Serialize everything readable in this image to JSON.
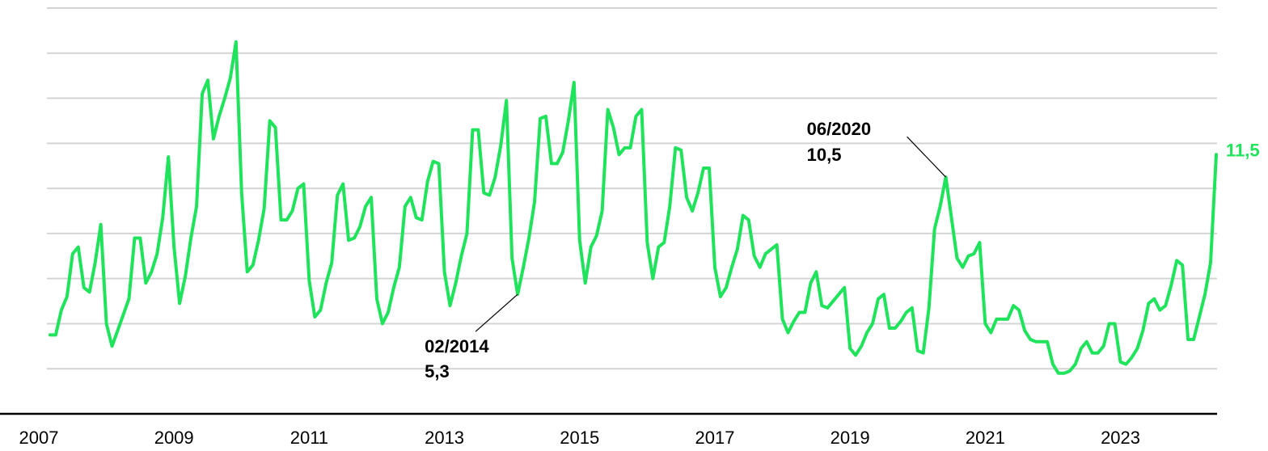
{
  "chart_data": {
    "type": "line",
    "color": "#1fe35b",
    "grid": true,
    "xlim": [
      2007,
      2024.417
    ],
    "xticks": [
      2007,
      2009,
      2011,
      2013,
      2015,
      2017,
      2019,
      2021,
      2023
    ],
    "ylim": [
      0,
      18
    ],
    "yticks": [
      0,
      2,
      4,
      6,
      8,
      10,
      12,
      14,
      16,
      18
    ],
    "x": [
      2007.167,
      2007.25,
      2007.333,
      2007.417,
      2007.5,
      2007.583,
      2007.667,
      2007.75,
      2007.833,
      2007.917,
      2008,
      2008.083,
      2008.167,
      2008.25,
      2008.333,
      2008.417,
      2008.5,
      2008.583,
      2008.667,
      2008.75,
      2008.833,
      2008.917,
      2009,
      2009.083,
      2009.167,
      2009.25,
      2009.333,
      2009.417,
      2009.5,
      2009.583,
      2009.667,
      2009.75,
      2009.833,
      2009.917,
      2010,
      2010.083,
      2010.167,
      2010.25,
      2010.333,
      2010.417,
      2010.5,
      2010.583,
      2010.667,
      2010.75,
      2010.833,
      2010.917,
      2011,
      2011.083,
      2011.167,
      2011.25,
      2011.333,
      2011.417,
      2011.5,
      2011.583,
      2011.667,
      2011.75,
      2011.833,
      2011.917,
      2012,
      2012.083,
      2012.167,
      2012.25,
      2012.333,
      2012.417,
      2012.5,
      2012.583,
      2012.667,
      2012.75,
      2012.833,
      2012.917,
      2013,
      2013.083,
      2013.167,
      2013.25,
      2013.333,
      2013.417,
      2013.5,
      2013.583,
      2013.667,
      2013.75,
      2013.833,
      2013.917,
      2014,
      2014.083,
      2014.167,
      2014.25,
      2014.333,
      2014.417,
      2014.5,
      2014.583,
      2014.667,
      2014.75,
      2014.833,
      2014.917,
      2015,
      2015.083,
      2015.167,
      2015.25,
      2015.333,
      2015.417,
      2015.5,
      2015.583,
      2015.667,
      2015.75,
      2015.833,
      2015.917,
      2016,
      2016.083,
      2016.167,
      2016.25,
      2016.333,
      2016.417,
      2016.5,
      2016.583,
      2016.667,
      2016.75,
      2016.833,
      2016.917,
      2017,
      2017.083,
      2017.167,
      2017.25,
      2017.333,
      2017.417,
      2017.5,
      2017.583,
      2017.667,
      2017.75,
      2017.833,
      2017.917,
      2018,
      2018.083,
      2018.167,
      2018.25,
      2018.333,
      2018.417,
      2018.5,
      2018.583,
      2018.667,
      2018.75,
      2018.833,
      2018.917,
      2019,
      2019.083,
      2019.167,
      2019.25,
      2019.333,
      2019.417,
      2019.5,
      2019.583,
      2019.667,
      2019.75,
      2019.833,
      2019.917,
      2020,
      2020.083,
      2020.167,
      2020.25,
      2020.333,
      2020.417,
      2020.5,
      2020.583,
      2020.667,
      2020.75,
      2020.833,
      2020.917,
      2021,
      2021.083,
      2021.167,
      2021.25,
      2021.333,
      2021.417,
      2021.5,
      2021.583,
      2021.667,
      2021.75,
      2021.833,
      2021.917,
      2022,
      2022.083,
      2022.167,
      2022.25,
      2022.333,
      2022.417,
      2022.5,
      2022.583,
      2022.667,
      2022.75,
      2022.833,
      2022.917,
      2023,
      2023.083,
      2023.167,
      2023.25,
      2023.333,
      2023.417,
      2023.5,
      2023.583,
      2023.667,
      2023.75,
      2023.833,
      2023.917,
      2024,
      2024.083,
      2024.167,
      2024.25,
      2024.333,
      2024.417
    ],
    "values": [
      3.5,
      3.5,
      4.6,
      5.2,
      7.1,
      7.4,
      5.6,
      5.4,
      6.7,
      8.4,
      4.0,
      3.0,
      3.7,
      4.4,
      5.1,
      7.8,
      7.8,
      5.8,
      6.3,
      7.1,
      8.7,
      11.4,
      7.4,
      4.9,
      6.1,
      7.8,
      9.2,
      14.2,
      14.8,
      12.2,
      13.2,
      14.0,
      14.9,
      16.5,
      9.8,
      6.3,
      6.6,
      7.7,
      9.1,
      13.0,
      12.7,
      8.6,
      8.6,
      9.0,
      10.0,
      10.2,
      5.9,
      4.3,
      4.6,
      5.8,
      6.7,
      9.7,
      10.2,
      7.7,
      7.8,
      8.3,
      9.2,
      9.6,
      5.1,
      4.0,
      4.5,
      5.6,
      6.5,
      9.2,
      9.6,
      8.7,
      8.6,
      10.3,
      11.2,
      11.1,
      6.3,
      4.8,
      5.8,
      7.0,
      8.0,
      12.6,
      12.6,
      9.8,
      9.7,
      10.5,
      11.9,
      13.9,
      6.9,
      5.3,
      6.5,
      7.8,
      9.4,
      13.1,
      13.2,
      11.1,
      11.1,
      11.6,
      13.0,
      14.7,
      7.7,
      5.8,
      7.4,
      7.9,
      9.0,
      13.5,
      12.7,
      11.5,
      11.8,
      11.8,
      13.2,
      13.5,
      7.6,
      6.0,
      7.4,
      7.6,
      9.2,
      11.8,
      11.7,
      9.6,
      9.0,
      9.8,
      10.9,
      10.9,
      6.5,
      5.2,
      5.6,
      6.5,
      7.3,
      8.8,
      8.6,
      7.0,
      6.5,
      7.1,
      7.3,
      7.5,
      4.2,
      3.6,
      4.1,
      4.5,
      4.5,
      5.8,
      6.3,
      4.8,
      4.7,
      5.0,
      5.3,
      5.6,
      2.9,
      2.6,
      3.0,
      3.6,
      4.0,
      5.1,
      5.3,
      3.8,
      3.8,
      4.1,
      4.5,
      4.7,
      2.8,
      2.7,
      4.7,
      8.2,
      9.2,
      10.5,
      8.7,
      6.9,
      6.5,
      7.0,
      7.1,
      7.6,
      4.0,
      3.6,
      4.2,
      4.2,
      4.2,
      4.8,
      4.6,
      3.7,
      3.3,
      3.2,
      3.2,
      3.2,
      2.2,
      1.8,
      1.8,
      1.9,
      2.2,
      2.9,
      3.2,
      2.7,
      2.7,
      3.0,
      4.0,
      4.0,
      2.3,
      2.2,
      2.5,
      2.9,
      3.7,
      4.9,
      5.1,
      4.6,
      4.8,
      5.7,
      6.8,
      6.6,
      3.3,
      3.3,
      4.3,
      5.3,
      6.7,
      11.5
    ],
    "annotations": [
      {
        "label": "02/2014",
        "x": 2014.083,
        "value": 5.3,
        "value_label": "5,3"
      },
      {
        "label": "06/2020",
        "x": 2020.417,
        "value": 10.5,
        "value_label": "10,5"
      },
      {
        "x": 2024.417,
        "value": 11.5,
        "value_label": "11,5"
      }
    ]
  }
}
